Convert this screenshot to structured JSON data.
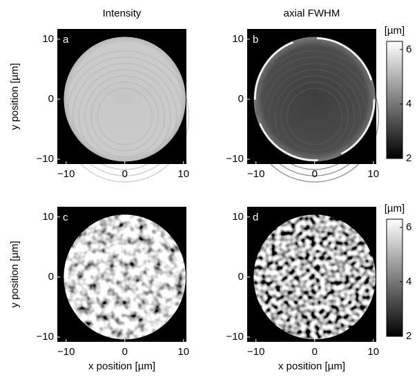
{
  "chart_data": [
    {
      "type": "image",
      "title": "Intensity",
      "panel_label": "a",
      "ylabel": "y position [µm]",
      "xlim": [
        -11.5,
        10.5
      ],
      "ylim": [
        -10.8,
        11.7
      ],
      "xticks": [
        {
          "value": -10,
          "label": "−10"
        },
        0,
        10
      ],
      "yticks": [
        {
          "value": -10,
          "label": "−10"
        },
        0,
        10
      ]
    },
    {
      "type": "image",
      "title": "axial FWHM",
      "panel_label": "b",
      "xlim": [
        -11.5,
        10.5
      ],
      "ylim": [
        -10.8,
        11.7
      ],
      "xticks": [
        {
          "value": -10,
          "label": "−10"
        },
        0,
        10
      ],
      "yticks": [
        {
          "value": -10,
          "label": "−10"
        },
        0,
        10
      ],
      "colorbar": {
        "label": "[µm]",
        "lim": [
          2,
          6.3
        ],
        "ticks": [
          2,
          4,
          6
        ]
      }
    },
    {
      "type": "image",
      "panel_label": "c",
      "xlabel": "x position [µm]",
      "ylabel": "y position [µm]",
      "xlim": [
        -11.5,
        10.5
      ],
      "ylim": [
        -10.8,
        11.7
      ],
      "xticks": [
        {
          "value": -10,
          "label": "−10"
        },
        0,
        10
      ],
      "yticks": [
        {
          "value": -10,
          "label": "−10"
        },
        0,
        10
      ]
    },
    {
      "type": "image",
      "panel_label": "d",
      "xlabel": "x position [µm]",
      "xlim": [
        -11.5,
        10.5
      ],
      "ylim": [
        -10.8,
        11.7
      ],
      "xticks": [
        {
          "value": -10,
          "label": "−10"
        },
        0,
        10
      ],
      "yticks": [
        {
          "value": -10,
          "label": "−10"
        },
        0,
        10
      ],
      "colorbar": {
        "label": "[µm]",
        "lim": [
          2,
          6.3
        ],
        "ticks": [
          2,
          4,
          6
        ]
      }
    }
  ]
}
